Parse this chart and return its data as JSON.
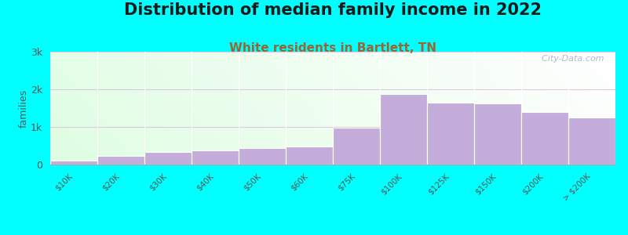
{
  "title": "Distribution of median family income in 2022",
  "subtitle": "White residents in Bartlett, TN",
  "ylabel": "families",
  "background_color": "#00FFFF",
  "bar_color": "#C4ADDA",
  "bar_edge_color": "#FFFFFF",
  "categories": [
    "$10K",
    "$20K",
    "$30K",
    "$40K",
    "$50K",
    "$60K",
    "$75K",
    "$100K",
    "$125K",
    "$150K",
    "$200K",
    "> $200K"
  ],
  "values": [
    100,
    220,
    340,
    380,
    430,
    470,
    970,
    1870,
    1640,
    1620,
    1390,
    1250
  ],
  "bin_edges": [
    0,
    10,
    20,
    30,
    40,
    50,
    60,
    75,
    100,
    125,
    150,
    200,
    250
  ],
  "ylim": [
    0,
    3000
  ],
  "yticks": [
    0,
    1000,
    2000,
    3000
  ],
  "ytick_labels": [
    "0",
    "1k",
    "2k",
    "3k"
  ],
  "title_fontsize": 15,
  "subtitle_fontsize": 11,
  "subtitle_color": "#996633",
  "watermark": "  City-Data.com"
}
